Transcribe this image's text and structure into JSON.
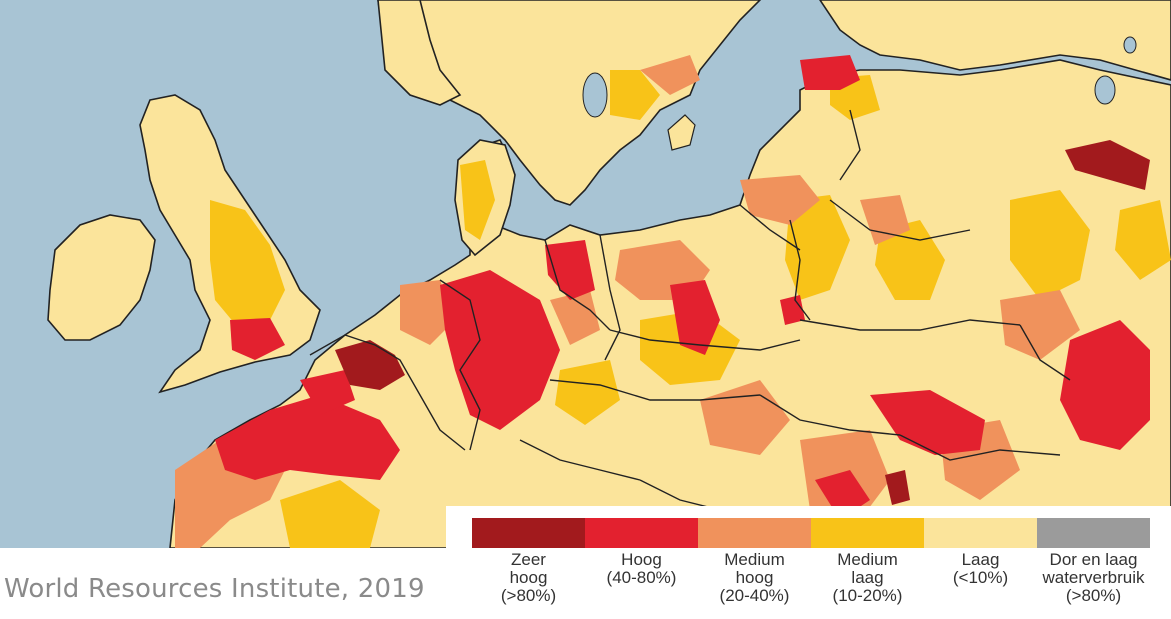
{
  "source": "World Resources Institute, 2019",
  "legend": {
    "items": [
      {
        "label": "Zeer\nhoog\n(>80%)",
        "color": "#a21a1d"
      },
      {
        "label": "Hoog\n(40-80%)",
        "color": "#e3212f"
      },
      {
        "label": "Medium\nhoog\n(20-40%)",
        "color": "#f0925c"
      },
      {
        "label": "Medium\nlaag\n(10-20%)",
        "color": "#f8c318"
      },
      {
        "label": "Laag\n(<10%)",
        "color": "#fbe49b"
      },
      {
        "label": "Dor en laag\nwaterverbruik\n(>80%)",
        "color": "#9b9b9b"
      }
    ]
  },
  "map": {
    "sea_color": "#a8c4d4",
    "land_color": "#fbe49b"
  }
}
